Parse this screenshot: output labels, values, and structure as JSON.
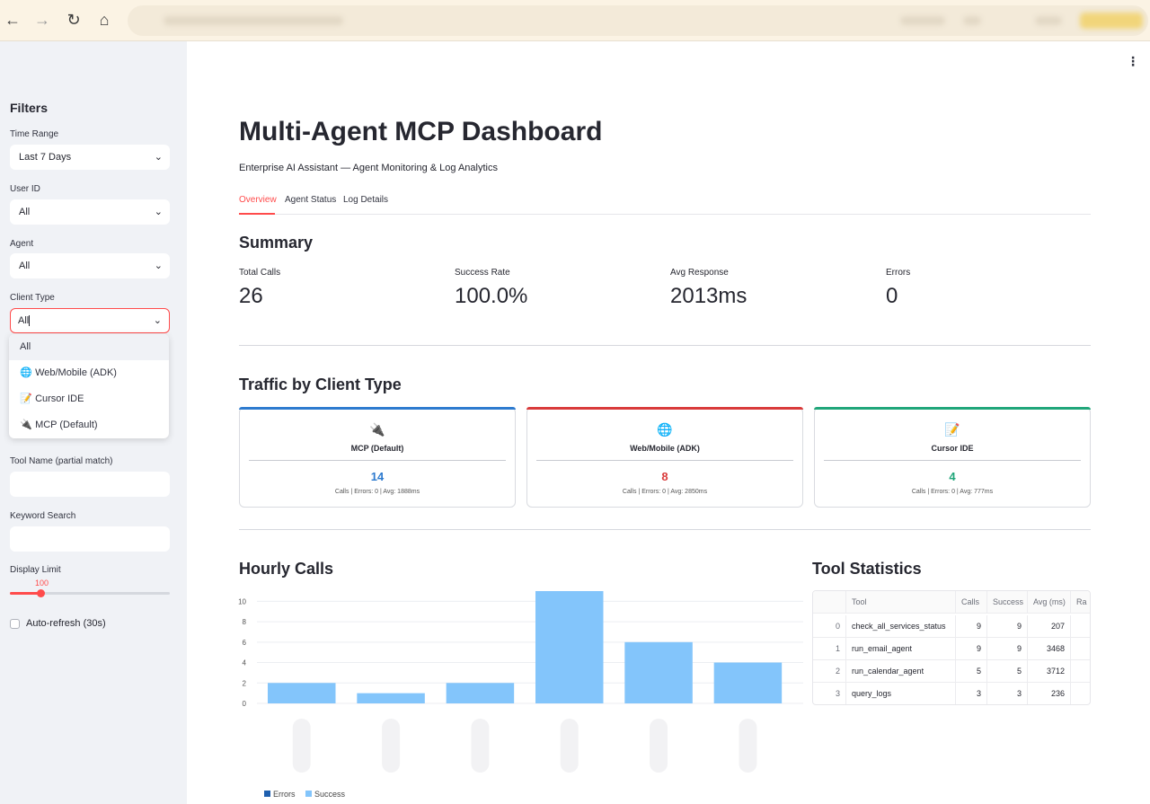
{
  "sidebar": {
    "title": "Filters",
    "time_range": {
      "label": "Time Range",
      "value": "Last 7 Days"
    },
    "user_id": {
      "label": "User ID",
      "value": "All"
    },
    "agent": {
      "label": "Agent",
      "value": "All"
    },
    "client_type": {
      "label": "Client Type",
      "value": "All",
      "options": [
        {
          "label": "All",
          "icon": ""
        },
        {
          "label": "Web/Mobile (ADK)",
          "icon": "globe-icon"
        },
        {
          "label": "Cursor IDE",
          "icon": "memo-icon"
        },
        {
          "label": "MCP (Default)",
          "icon": "plug-icon"
        }
      ]
    },
    "tool_name": {
      "label": "Tool Name (partial match)"
    },
    "keyword": {
      "label": "Keyword Search"
    },
    "display_limit": {
      "label": "Display Limit",
      "value": "100",
      "fraction": 0.19
    },
    "auto_refresh": {
      "label": "Auto-refresh (30s)",
      "checked": false
    }
  },
  "main": {
    "title": "Multi-Agent MCP Dashboard",
    "subtitle": "Enterprise AI Assistant — Agent Monitoring & Log Analytics",
    "tabs": [
      {
        "label": "Overview",
        "active": true
      },
      {
        "label": "Agent Status",
        "active": false
      },
      {
        "label": "Log Details",
        "active": false
      }
    ],
    "summary": {
      "heading": "Summary",
      "metrics": [
        {
          "label": "Total Calls",
          "value": "26"
        },
        {
          "label": "Success Rate",
          "value": "100.0%"
        },
        {
          "label": "Avg Response",
          "value": "2013ms"
        },
        {
          "label": "Errors",
          "value": "0"
        }
      ]
    },
    "traffic": {
      "heading": "Traffic by Client Type",
      "cards": [
        {
          "name": "MCP (Default)",
          "count": "14",
          "meta": "Calls | Errors: 0 | Avg: 1888ms",
          "color": "#2e7bcf",
          "icon": "plug-icon",
          "glyph": "🔌"
        },
        {
          "name": "Web/Mobile (ADK)",
          "count": "8",
          "meta": "Calls | Errors: 0 | Avg: 2850ms",
          "color": "#d93b3b",
          "icon": "globe-icon",
          "glyph": "🌐"
        },
        {
          "name": "Cursor IDE",
          "count": "4",
          "meta": "Calls | Errors: 0 | Avg: 777ms",
          "color": "#21a67a",
          "icon": "memo-icon",
          "glyph": "📝"
        }
      ]
    },
    "hourly": {
      "heading": "Hourly Calls"
    },
    "tool_stats": {
      "heading": "Tool Statistics",
      "columns": [
        "",
        "Tool",
        "Calls",
        "Success",
        "Avg (ms)",
        "Ra"
      ],
      "rows": [
        [
          "0",
          "check_all_services_status",
          "9",
          "9",
          "207"
        ],
        [
          "1",
          "run_email_agent",
          "9",
          "9",
          "3468"
        ],
        [
          "2",
          "run_calendar_agent",
          "5",
          "5",
          "3712"
        ],
        [
          "3",
          "query_logs",
          "3",
          "3",
          "236"
        ]
      ]
    }
  },
  "chart_data": {
    "type": "bar",
    "title": "Hourly Calls",
    "categories": [
      "",
      "",
      "",
      "",
      "",
      ""
    ],
    "series": [
      {
        "name": "Errors",
        "color": "#1f5fae",
        "values": [
          0,
          0,
          0,
          0,
          0,
          0
        ]
      },
      {
        "name": "Success",
        "color": "#83c5fb",
        "values": [
          2,
          1,
          2,
          11,
          6,
          4
        ]
      }
    ],
    "yticks": [
      0,
      2,
      4,
      6,
      8,
      10
    ],
    "ylim": [
      0,
      11
    ],
    "stacked": true,
    "legend": "bottom-left",
    "grid": true
  },
  "colors": {
    "accent": "#ff4b4b",
    "sidebar_bg": "#f0f2f6"
  }
}
